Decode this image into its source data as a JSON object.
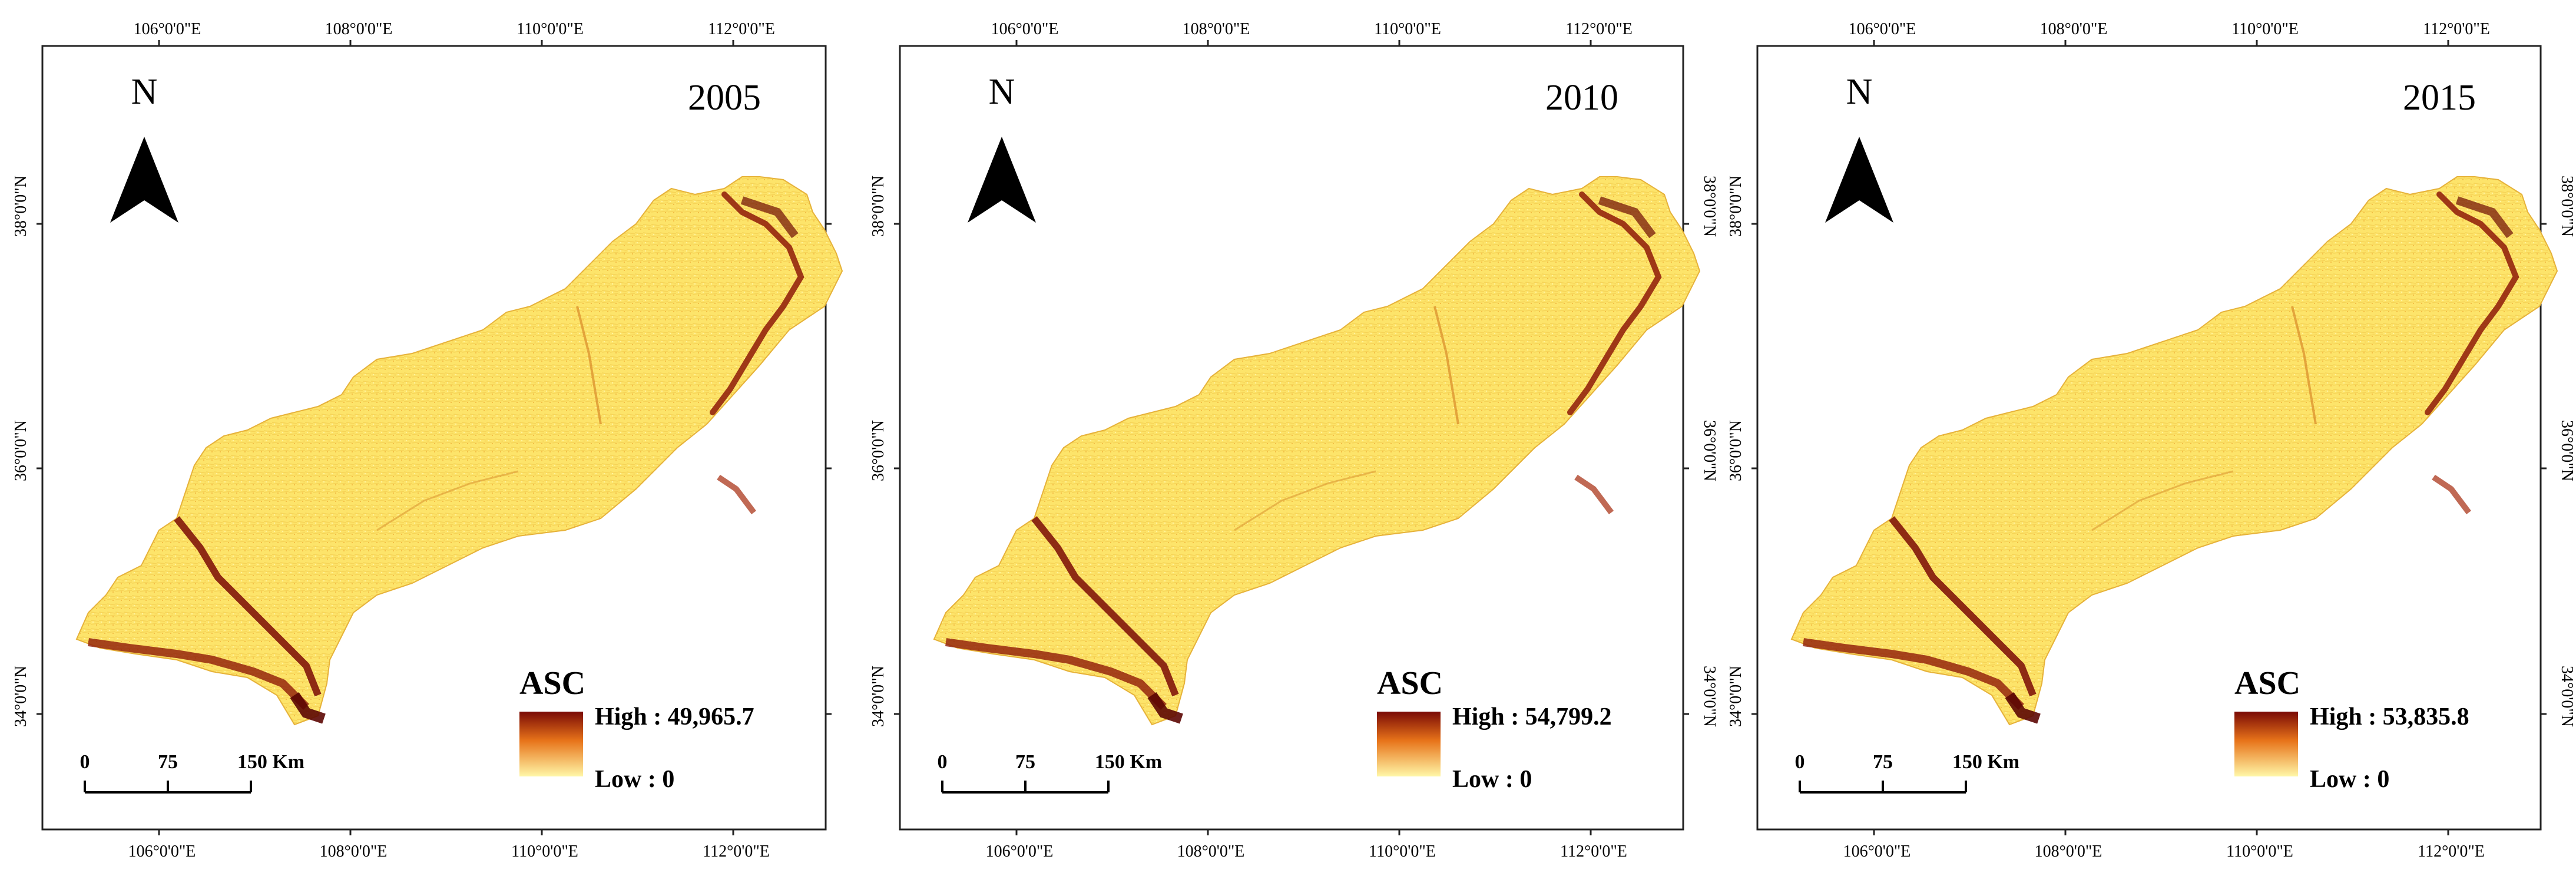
{
  "panels": [
    {
      "year": "2005",
      "north": "N",
      "legend": {
        "title": "ASC",
        "high": "High : 49,965.7",
        "low": "Low : 0"
      },
      "scale": {
        "ticks": [
          "0",
          "75",
          "150 Km"
        ]
      },
      "lon_top": [
        "106°0'0\"E",
        "108°0'0\"E",
        "110°0'0\"E",
        "112°0'0\"E"
      ],
      "lon_bottom": [
        "106°0'0\"E",
        "108°0'0\"E",
        "110°0'0\"E",
        "112°0'0\"E"
      ],
      "lat_left": [
        "38°0'0\"N",
        "36°0'0\"N",
        "34°0'0\"N"
      ],
      "lat_right": []
    },
    {
      "year": "2010",
      "north": "N",
      "legend": {
        "title": "ASC",
        "high": "High : 54,799.2",
        "low": "Low : 0"
      },
      "scale": {
        "ticks": [
          "0",
          "75",
          "150 Km"
        ]
      },
      "lon_top": [
        "106°0'0\"E",
        "108°0'0\"E",
        "110°0'0\"E",
        "112°0'0\"E"
      ],
      "lon_bottom": [
        "106°0'0\"E",
        "108°0'0\"E",
        "110°0'0\"E",
        "112°0'0\"E"
      ],
      "lat_left": [
        "38°0'0\"N",
        "36°0'0\"N",
        "34°0'0\"N"
      ],
      "lat_right": [
        "38°0'0\"N",
        "36°0'0\"N",
        "34°0'0\"N"
      ]
    },
    {
      "year": "2015",
      "north": "N",
      "legend": {
        "title": "ASC",
        "high": "High : 53,835.8",
        "low": "Low : 0"
      },
      "scale": {
        "ticks": [
          "0",
          "75",
          "150 Km"
        ]
      },
      "lon_top": [
        "106°0'0\"E",
        "108°0'0\"E",
        "110°0'0\"E",
        "112°0'0\"E"
      ],
      "lon_bottom": [
        "106°0'0\"E",
        "108°0'0\"E",
        "110°0'0\"E",
        "112°0'0\"E"
      ],
      "lat_left": [
        "38°0'0\"N",
        "36°0'0\"N",
        "34°0'0\"N"
      ],
      "lat_right": [
        "38°0'0\"N",
        "36°0'0\"N",
        "34°0'0\"N"
      ]
    }
  ],
  "colors": {
    "low": "#fff7a8",
    "mid": "#f7c744",
    "high": "#7a0a05",
    "region_base": "#fde46a",
    "hotspot": "#8e1a08"
  }
}
